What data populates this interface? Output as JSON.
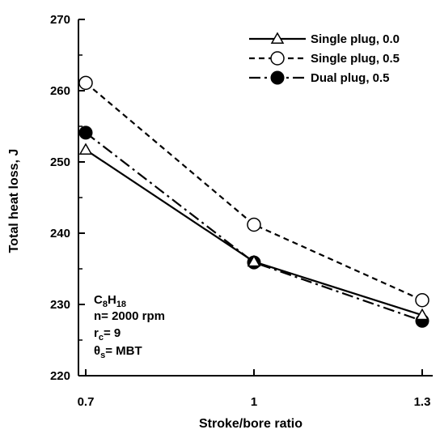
{
  "chart_data": {
    "type": "line",
    "xlabel": "Stroke/bore ratio",
    "ylabel": "Total heat loss, J",
    "xlim": [
      0.7,
      1.3
    ],
    "ylim": [
      220,
      270
    ],
    "x": [
      0.7,
      1.0,
      1.3
    ],
    "x_tick_labels": [
      "0.7",
      "1",
      "1.3"
    ],
    "y_ticks": [
      220,
      230,
      240,
      250,
      260,
      270
    ],
    "y_tick_labels": [
      "220",
      "230",
      "240",
      "250",
      "260",
      "270"
    ],
    "legend_position": "top-right",
    "grid": false,
    "series": [
      {
        "name": "Single plug, 0.0",
        "values": [
          251.7,
          236.0,
          228.5
        ],
        "line": "solid",
        "marker": "open-triangle"
      },
      {
        "name": "Single plug, 0.5",
        "values": [
          261.1,
          241.2,
          230.6
        ],
        "line": "dashed",
        "marker": "open-circle"
      },
      {
        "name": "Dual plug, 0.5",
        "values": [
          254.1,
          235.9,
          227.7
        ],
        "line": "dash-dot",
        "marker": "filled-circle"
      }
    ],
    "annotation": {
      "formula_base": "C",
      "formula_sub1": "8",
      "formula_mid": "H",
      "formula_sub2": "18",
      "speed": "n= 2000 rpm",
      "rc_base": "r",
      "rc_sub": "c",
      "rc_value": "= 9",
      "theta_base": "θ",
      "theta_sub": "s",
      "theta_value": "= MBT"
    }
  }
}
